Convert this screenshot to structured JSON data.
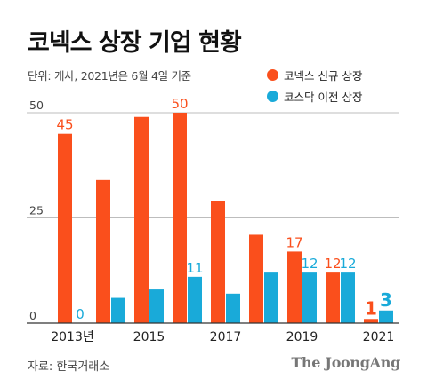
{
  "chart_data": {
    "type": "bar",
    "title": "코넥스 상장 기업 현황",
    "unit_note": "단위: 개사, 2021년은 6월 4일 기준",
    "categories": [
      "2013",
      "2014",
      "2015",
      "2016",
      "2017",
      "2018",
      "2019",
      "2020",
      "2021"
    ],
    "tick_labels": [
      "2013년",
      "",
      "2015",
      "",
      "2017",
      "",
      "2019",
      "",
      "2021"
    ],
    "series": [
      {
        "name": "코넥스 신규 상장",
        "color": "#fa4f1c",
        "values": [
          45,
          34,
          49,
          50,
          29,
          21,
          17,
          12,
          1
        ]
      },
      {
        "name": "코스닥 이전 상장",
        "color": "#19aad9",
        "values": [
          0,
          6,
          8,
          11,
          7,
          12,
          12,
          12,
          3
        ]
      }
    ],
    "data_labels": [
      {
        "series": 0,
        "index": 0,
        "text": "45"
      },
      {
        "series": 1,
        "index": 0,
        "text": "0"
      },
      {
        "series": 0,
        "index": 3,
        "text": "50"
      },
      {
        "series": 1,
        "index": 3,
        "text": "11"
      },
      {
        "series": 0,
        "index": 6,
        "text": "17"
      },
      {
        "series": 1,
        "index": 6,
        "text": "12"
      },
      {
        "series": 0,
        "index": 7,
        "text": "12"
      },
      {
        "series": 1,
        "index": 7,
        "text": "12"
      },
      {
        "series": 0,
        "index": 8,
        "text": "1"
      },
      {
        "series": 1,
        "index": 8,
        "text": "3"
      }
    ],
    "yticks": [
      0,
      25,
      50
    ],
    "ylim": [
      0,
      54
    ],
    "grid": true,
    "legend_position": "top-right"
  },
  "source": "자료: 한국거래소",
  "brand": "The JoongAng"
}
